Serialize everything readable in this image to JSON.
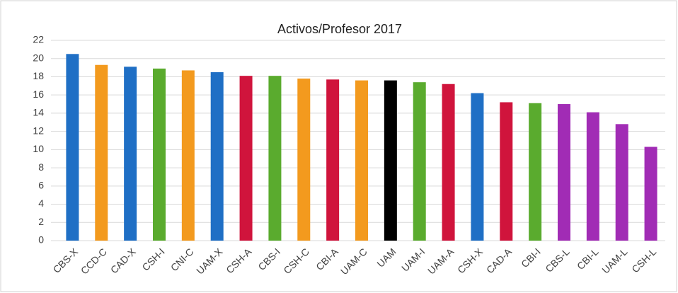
{
  "chart_data": {
    "type": "bar",
    "title": "Activos/Profesor 2017",
    "categories": [
      "CBS-X",
      "CCD-C",
      "CAD-X",
      "CSH-I",
      "CNI-C",
      "UAM-X",
      "CSH-A",
      "CBS-I",
      "CSH-C",
      "CBI-A",
      "UAM-C",
      "UAM",
      "UAM-I",
      "UAM-A",
      "CSH-X",
      "CAD-A",
      "CBI-I",
      "CBS-L",
      "CBI-L",
      "UAM-L",
      "CSH-L"
    ],
    "values": [
      20.5,
      19.3,
      19.1,
      18.9,
      18.7,
      18.5,
      18.1,
      18.1,
      17.8,
      17.7,
      17.6,
      17.6,
      17.4,
      17.2,
      16.2,
      15.2,
      15.1,
      15.0,
      14.1,
      12.8,
      10.3
    ],
    "colors": [
      "#1f6fc5",
      "#f39a1e",
      "#1f6fc5",
      "#5aab2e",
      "#f39a1e",
      "#1f6fc5",
      "#d0143c",
      "#5aab2e",
      "#f39a1e",
      "#d0143c",
      "#f39a1e",
      "#000000",
      "#5aab2e",
      "#d0143c",
      "#1f6fc5",
      "#d0143c",
      "#5aab2e",
      "#a12cb5",
      "#a12cb5",
      "#a12cb5",
      "#a12cb5"
    ],
    "ylim": [
      0,
      22
    ],
    "yticks": [
      0,
      2,
      4,
      6,
      8,
      10,
      12,
      14,
      16,
      18,
      20,
      22
    ],
    "grid": true
  }
}
